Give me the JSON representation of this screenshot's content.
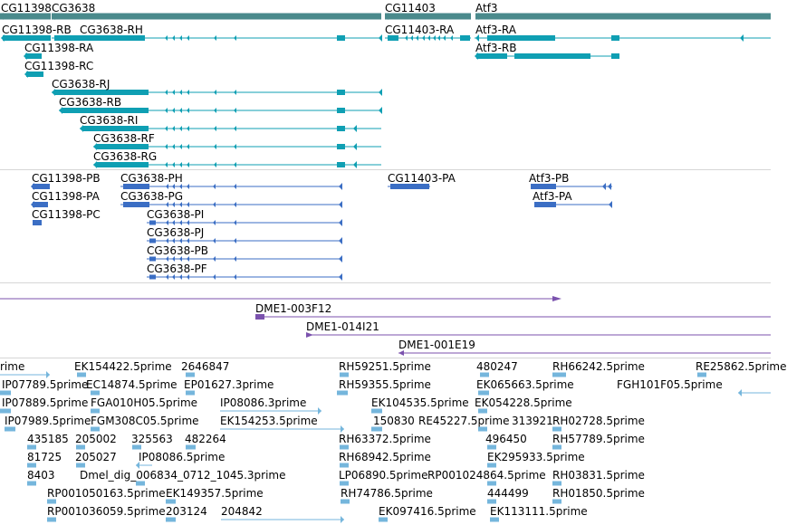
{
  "colors": {
    "gene_span": "#4a8a8c",
    "transcript": "#0f9fb3",
    "cds": "#3b6ec4",
    "clone": "#7b52ae",
    "est": "#75b6dc",
    "separator": "#d6d6d6"
  },
  "genes": {
    "cg11398": "CG11398",
    "cg3638": "CG3638",
    "cg11403": "CG11403",
    "atf3": "Atf3"
  },
  "transcripts": [
    {
      "id": "CG11398-RB",
      "label": "CG11398-RB"
    },
    {
      "id": "CG3638-RH",
      "label": "CG3638-RH"
    },
    {
      "id": "CG11403-RA",
      "label": "CG11403-RA"
    },
    {
      "id": "Atf3-RA",
      "label": "Atf3-RA"
    },
    {
      "id": "CG11398-RA",
      "label": "CG11398-RA"
    },
    {
      "id": "Atf3-RB",
      "label": "Atf3-RB"
    },
    {
      "id": "CG11398-RC",
      "label": "CG11398-RC"
    },
    {
      "id": "CG3638-RJ",
      "label": "CG3638-RJ"
    },
    {
      "id": "CG3638-RB",
      "label": "CG3638-RB"
    },
    {
      "id": "CG3638-RI",
      "label": "CG3638-RI"
    },
    {
      "id": "CG3638-RF",
      "label": "CG3638-RF"
    },
    {
      "id": "CG3638-RG",
      "label": "CG3638-RG"
    }
  ],
  "proteins": [
    {
      "id": "CG11398-PB",
      "label": "CG11398-PB"
    },
    {
      "id": "CG3638-PH",
      "label": "CG3638-PH"
    },
    {
      "id": "CG11403-PA",
      "label": "CG11403-PA"
    },
    {
      "id": "Atf3-PB",
      "label": "Atf3-PB"
    },
    {
      "id": "CG11398-PA",
      "label": "CG11398-PA"
    },
    {
      "id": "CG3638-PG",
      "label": "CG3638-PG"
    },
    {
      "id": "Atf3-PA",
      "label": "Atf3-PA"
    },
    {
      "id": "CG11398-PC",
      "label": "CG11398-PC"
    },
    {
      "id": "CG3638-PI",
      "label": "CG3638-PI"
    },
    {
      "id": "CG3638-PJ",
      "label": "CG3638-PJ"
    },
    {
      "id": "CG3638-PB",
      "label": "CG3638-PB"
    },
    {
      "id": "CG3638-PF",
      "label": "CG3638-PF"
    }
  ],
  "clones": [
    {
      "id": "DME1-003F12",
      "label": "DME1-003F12"
    },
    {
      "id": "DME1-014I21",
      "label": "DME1-014I21"
    },
    {
      "id": "DME1-001E19",
      "label": "DME1-001E19"
    }
  ],
  "ests": [
    "rime",
    "EK154422.5prime",
    "2646847",
    "RH59251.5prime",
    "480247",
    "RH66242.5prime",
    "RE25862.5prime",
    "IP07789.5prime",
    "EC14874.5prime",
    "EP01627.3prime",
    "RH59355.5prime",
    "EK065663.5prime",
    "FGH101F05.5prime",
    "IP07889.5prime",
    "FGA010H05.5prime",
    "IP08086.3prime",
    "EK104535.5prime",
    "EK054228.5prime",
    "IP07989.5prime",
    "FGM308C05.5prime",
    "EK154253.5prime",
    "150830",
    "RE45227.5prime",
    "313921",
    "RH02728.5prime",
    "435185",
    "205002",
    "325563",
    "482264",
    "RH63372.5prime",
    "496450",
    "RH57789.5prime",
    "81725",
    "205027",
    "IP08086.5prime",
    "RH68942.5prime",
    "EK295933.5prime",
    "8403",
    "Dmel_dig_006834_0712_1045.3prime",
    "LP06890.5prime",
    "RP001024864.5prime",
    "RH03831.5prime",
    "RP001050163.5prime",
    "EK149357.5prime",
    "RH74786.5prime",
    "444499",
    "RH01850.5prime",
    "RP001036059.5prime",
    "203124",
    "204842",
    "EK097416.5prime",
    "EK113111.5prime"
  ]
}
